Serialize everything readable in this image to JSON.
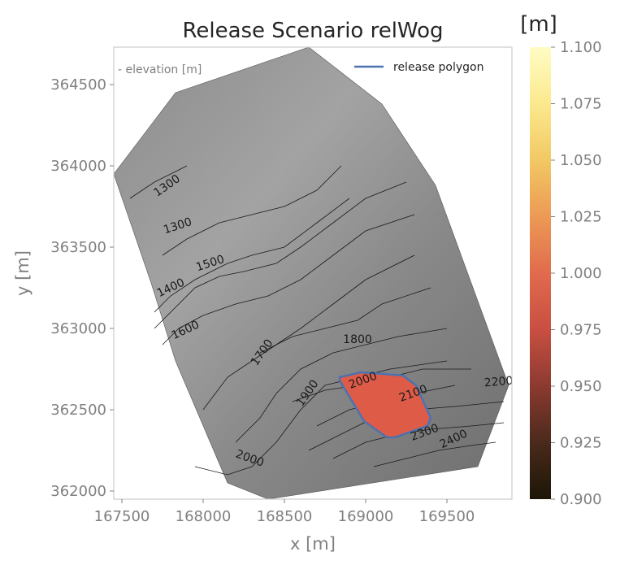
{
  "chart_data": {
    "type": "heatmap",
    "title": "Release Scenario relWog",
    "xlabel": "x [m]",
    "ylabel": "y [m]",
    "xlim": [
      167450,
      169900
    ],
    "ylim": [
      361950,
      364730
    ],
    "x_ticks": [
      167500,
      168000,
      168500,
      169000,
      169500
    ],
    "y_ticks": [
      362000,
      362500,
      363000,
      363500,
      364000,
      364500
    ],
    "annotation": "- elevation [m]",
    "legend": {
      "entries": [
        "release polygon"
      ],
      "placement": "top-right",
      "color": "#4c72b0"
    },
    "colorbar": {
      "label": "[m]",
      "range": [
        0.9,
        1.1
      ],
      "ticks": [
        "0.900",
        "0.925",
        "0.950",
        "0.975",
        "1.000",
        "1.025",
        "1.050",
        "1.075",
        "1.100"
      ],
      "colormap": [
        "#1c1606",
        "#4a2a1c",
        "#8c3a30",
        "#c84f42",
        "#e06b4d",
        "#ec9a55",
        "#f2c864",
        "#fbe98e",
        "#fffcc4"
      ]
    },
    "release_area_value": 1.0,
    "release_area_color": "#de5b48",
    "domain_outline": [
      [
        167830,
        364450
      ],
      [
        168650,
        364730
      ],
      [
        169100,
        364380
      ],
      [
        169430,
        363880
      ],
      [
        169880,
        362650
      ],
      [
        169690,
        362150
      ],
      [
        168400,
        361950
      ],
      [
        168150,
        362050
      ],
      [
        167830,
        362800
      ],
      [
        167680,
        363280
      ],
      [
        167450,
        363950
      ],
      [
        167640,
        364200
      ]
    ],
    "release_polygon": [
      [
        168840,
        362700
      ],
      [
        168970,
        362730
      ],
      [
        169110,
        362720
      ],
      [
        169230,
        362710
      ],
      [
        169310,
        362650
      ],
      [
        169400,
        362450
      ],
      [
        169380,
        362400
      ],
      [
        169180,
        362330
      ],
      [
        169130,
        362330
      ],
      [
        168990,
        362430
      ],
      [
        168840,
        362680
      ]
    ],
    "contours": [
      {
        "label": "1300",
        "points": [
          [
            167550,
            363800
          ],
          [
            167700,
            363900
          ],
          [
            167900,
            364000
          ]
        ]
      },
      {
        "label": "1300",
        "points": [
          [
            167750,
            363450
          ],
          [
            167900,
            363550
          ],
          [
            168100,
            363650
          ],
          [
            168300,
            363700
          ],
          [
            168500,
            363750
          ],
          [
            168700,
            363850
          ],
          [
            168850,
            364000
          ]
        ]
      },
      {
        "label": "1400",
        "points": [
          [
            167700,
            363100
          ],
          [
            167800,
            363200
          ],
          [
            167950,
            363300
          ],
          [
            168150,
            363400
          ],
          [
            168300,
            363450
          ],
          [
            168500,
            363500
          ],
          [
            168700,
            363650
          ],
          [
            168900,
            363800
          ]
        ]
      },
      {
        "label": "1500",
        "points": [
          [
            167700,
            363000
          ],
          [
            167950,
            363250
          ],
          [
            168100,
            363320
          ],
          [
            168250,
            363350
          ],
          [
            168450,
            363400
          ],
          [
            168600,
            363500
          ],
          [
            168800,
            363650
          ],
          [
            169000,
            363800
          ],
          [
            169250,
            363900
          ]
        ]
      },
      {
        "label": "1600",
        "points": [
          [
            167750,
            362900
          ],
          [
            167850,
            363000
          ],
          [
            168000,
            363080
          ],
          [
            168200,
            363150
          ],
          [
            168400,
            363200
          ],
          [
            168600,
            363300
          ],
          [
            168800,
            363450
          ],
          [
            169000,
            363600
          ],
          [
            169300,
            363700
          ]
        ]
      },
      {
        "label": "1700",
        "points": [
          [
            168000,
            362500
          ],
          [
            168150,
            362700
          ],
          [
            168300,
            362800
          ],
          [
            168450,
            362900
          ],
          [
            168600,
            363000
          ],
          [
            168800,
            363150
          ],
          [
            169000,
            363300
          ],
          [
            169300,
            363450
          ]
        ]
      },
      {
        "label": "1800",
        "points": [
          [
            168350,
            362850
          ],
          [
            168550,
            362950
          ],
          [
            168750,
            363000
          ],
          [
            168950,
            363050
          ],
          [
            169100,
            363150
          ],
          [
            169400,
            363250
          ]
        ]
      },
      {
        "label": "1900",
        "points": [
          [
            168200,
            362300
          ],
          [
            168350,
            362450
          ],
          [
            168450,
            362600
          ],
          [
            168600,
            362750
          ],
          [
            168800,
            362850
          ],
          [
            169000,
            362900
          ],
          [
            169200,
            362950
          ],
          [
            169500,
            363000
          ]
        ]
      },
      {
        "label": "2000",
        "points": [
          [
            167950,
            362150
          ],
          [
            168150,
            362100
          ],
          [
            168300,
            362150
          ],
          [
            168450,
            362300
          ],
          [
            168600,
            362500
          ],
          [
            168750,
            362650
          ],
          [
            168950,
            362700
          ],
          [
            169150,
            362750
          ],
          [
            169500,
            362800
          ]
        ]
      },
      {
        "label": "2000",
        "points": [
          [
            168550,
            362550
          ],
          [
            168750,
            362620
          ],
          [
            168950,
            362650
          ],
          [
            169150,
            362700
          ],
          [
            169350,
            362750
          ],
          [
            169650,
            362750
          ]
        ]
      },
      {
        "label": "2100",
        "points": [
          [
            168700,
            362400
          ],
          [
            168900,
            362500
          ],
          [
            169100,
            362550
          ],
          [
            169300,
            362600
          ],
          [
            169550,
            362650
          ]
        ]
      },
      {
        "label": "2200",
        "points": [
          [
            168650,
            362250
          ],
          [
            168850,
            362350
          ],
          [
            169050,
            362450
          ],
          [
            169300,
            362500
          ],
          [
            169550,
            362520
          ],
          [
            169850,
            362550
          ]
        ]
      },
      {
        "label": "2300",
        "points": [
          [
            168800,
            362200
          ],
          [
            169000,
            362300
          ],
          [
            169200,
            362350
          ],
          [
            169400,
            362380
          ],
          [
            169650,
            362400
          ],
          [
            169850,
            362420
          ]
        ]
      },
      {
        "label": "2400",
        "points": [
          [
            169050,
            362150
          ],
          [
            169250,
            362200
          ],
          [
            169450,
            362250
          ],
          [
            169650,
            362280
          ],
          [
            169800,
            362300
          ]
        ]
      }
    ],
    "contour_labels": [
      {
        "text": "1300",
        "x": 167790,
        "y": 363860,
        "angle": -35
      },
      {
        "text": "1300",
        "x": 167850,
        "y": 363610,
        "angle": -18
      },
      {
        "text": "1500",
        "x": 168050,
        "y": 363380,
        "angle": -18
      },
      {
        "text": "1400",
        "x": 167810,
        "y": 363230,
        "angle": -25
      },
      {
        "text": "1600",
        "x": 167900,
        "y": 362970,
        "angle": -25
      },
      {
        "text": "1700",
        "x": 168380,
        "y": 362840,
        "angle": -55
      },
      {
        "text": "1800",
        "x": 168950,
        "y": 362910,
        "angle": 0
      },
      {
        "text": "1900",
        "x": 168660,
        "y": 362590,
        "angle": -55
      },
      {
        "text": "2000",
        "x": 168990,
        "y": 362660,
        "angle": -20
      },
      {
        "text": "2100",
        "x": 169300,
        "y": 362580,
        "angle": -20
      },
      {
        "text": "2200",
        "x": 169820,
        "y": 362650,
        "angle": -5
      },
      {
        "text": "2300",
        "x": 169370,
        "y": 362340,
        "angle": -20
      },
      {
        "text": "2400",
        "x": 169550,
        "y": 362300,
        "angle": -25
      },
      {
        "text": "2000",
        "x": 168280,
        "y": 362180,
        "angle": 20
      }
    ]
  }
}
